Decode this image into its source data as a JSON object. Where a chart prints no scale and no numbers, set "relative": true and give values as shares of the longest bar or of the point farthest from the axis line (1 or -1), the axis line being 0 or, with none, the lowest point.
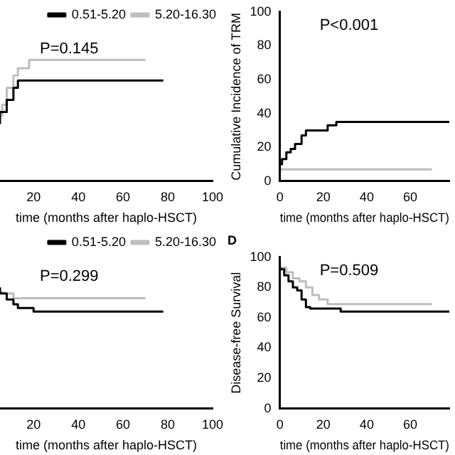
{
  "chart_data": [
    {
      "type": "step",
      "relative": true,
      "xlabel": "time (months after haplo-HSCT)",
      "xlim": [
        5,
        100
      ],
      "xticks": [
        20,
        40,
        60,
        80,
        100
      ],
      "tick_labels": "x",
      "legend": "top right",
      "marker": "none",
      "annotations": [
        "P=0.145"
      ],
      "series": [
        {
          "name": "0.51-5.20",
          "color": "#000000",
          "x": [
            5,
            8,
            11,
            13,
            15,
            78
          ],
          "values": [
            0.47,
            0.57,
            0.67,
            0.77,
            0.83,
            0.83
          ]
        },
        {
          "name": "5.20-16.30",
          "color": "#bdbdbd",
          "x": [
            6,
            8,
            11,
            13,
            18,
            22,
            70
          ],
          "values": [
            0.53,
            0.63,
            0.77,
            0.87,
            0.93,
            1,
            1
          ]
        }
      ]
    },
    {
      "type": "step",
      "xlabel": "time (months after haplo-HSCT)",
      "ylabel": "Cumulative Incidence of TRM",
      "xlim": [
        0,
        78
      ],
      "xticks": [
        0,
        20,
        40,
        60
      ],
      "ylim": [
        0,
        100
      ],
      "yticks": [
        0,
        20,
        40,
        60,
        80,
        100
      ],
      "marker": "none",
      "annotations": [
        "P<0.001"
      ],
      "series": [
        {
          "color": "#000000",
          "x": [
            0,
            1,
            3,
            5,
            7,
            10,
            12,
            14,
            22,
            26,
            28,
            78
          ],
          "values": [
            5,
            10,
            13,
            17,
            19,
            22,
            27,
            30,
            30,
            33,
            35,
            35
          ]
        },
        {
          "color": "#bdbdbd",
          "x": [
            0,
            70
          ],
          "values": [
            7,
            7
          ]
        }
      ]
    },
    {
      "type": "step",
      "relative": true,
      "xlabel": "time (months after haplo-HSCT)",
      "xlim": [
        5,
        100
      ],
      "xticks": [
        20,
        40,
        60,
        80,
        100
      ],
      "tick_labels": "x",
      "legend": "top right",
      "marker": "none",
      "annotations": [
        "P=0.299"
      ],
      "series": [
        {
          "name": "0.51-5.20",
          "color": "#000000",
          "x": [
            5,
            8,
            11,
            13,
            20,
            26,
            78
          ],
          "values": [
            1,
            0.95,
            0.9,
            0.86,
            0.83,
            0.8,
            0.8
          ]
        },
        {
          "name": "5.20-16.30",
          "color": "#bdbdbd",
          "x": [
            6,
            11,
            16,
            70
          ],
          "values": [
            0.97,
            0.95,
            0.91,
            0.91
          ]
        }
      ]
    },
    {
      "type": "step",
      "title": "D",
      "xlabel": "time (months after haplo-HSCT)",
      "ylabel": "Disease-free Survival",
      "xlim": [
        0,
        78
      ],
      "xticks": [
        0,
        20,
        40,
        60
      ],
      "ylim": [
        0,
        100
      ],
      "yticks": [
        0,
        20,
        40,
        60,
        80,
        100
      ],
      "marker": "none",
      "annotations": [
        "P=0.509"
      ],
      "series": [
        {
          "color": "#000000",
          "x": [
            0,
            2,
            4,
            6,
            8,
            10,
            12,
            14,
            28,
            30,
            78
          ],
          "values": [
            97,
            92,
            88,
            84,
            80,
            78,
            72,
            67,
            66,
            64,
            64
          ]
        },
        {
          "color": "#bdbdbd",
          "x": [
            0,
            3,
            6,
            9,
            12,
            15,
            18,
            22,
            25,
            70
          ],
          "values": [
            97,
            93,
            90,
            86,
            84,
            80,
            75,
            72,
            69,
            69
          ]
        }
      ]
    }
  ]
}
